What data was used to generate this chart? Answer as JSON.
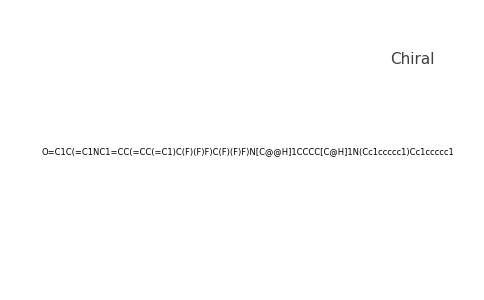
{
  "smiles": "O=C1C(=C1NC1=CC(=CC(=C1)C(F)(F)F)C(F)(F)F)N[C@@H]1CCCC[C@H]1N(Cc1ccccc1)Cc1ccccc1",
  "title": "Chiral",
  "title_color": "#404040",
  "title_fontsize": 11,
  "background_color": "#ffffff",
  "bond_color": "#000000",
  "atom_colors": {
    "N": "#0000ff",
    "O": "#ff0000",
    "F": "#33cc00"
  },
  "figsize": [
    4.84,
    3.0
  ],
  "dpi": 100
}
